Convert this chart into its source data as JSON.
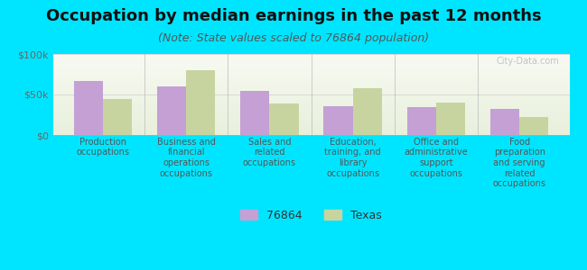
{
  "title": "Occupation by median earnings in the past 12 months",
  "subtitle": "(Note: State values scaled to 76864 population)",
  "categories": [
    "Production\noccupations",
    "Business and\nfinancial\noperations\noccupations",
    "Sales and\nrelated\noccupations",
    "Education,\ntraining, and\nlibrary\noccupations",
    "Office and\nadministrative\nsupport\noccupations",
    "Food\npreparation\nand serving\nrelated\noccupations"
  ],
  "values_76864": [
    67000,
    60000,
    54000,
    36000,
    34000,
    32000
  ],
  "values_texas": [
    45000,
    80000,
    39000,
    58000,
    40000,
    22000
  ],
  "color_76864": "#c4a0d4",
  "color_texas": "#c8d4a0",
  "background_color": "#00e5ff",
  "ylim": [
    0,
    100000
  ],
  "yticks": [
    0,
    50000,
    100000
  ],
  "ytick_labels": [
    "$0",
    "$50k",
    "$100k"
  ],
  "legend_labels": [
    "76864",
    "Texas"
  ],
  "bar_width": 0.35,
  "title_fontsize": 13,
  "subtitle_fontsize": 9,
  "axis_label_fontsize": 7,
  "legend_fontsize": 9,
  "watermark_text": "City-Data.com"
}
